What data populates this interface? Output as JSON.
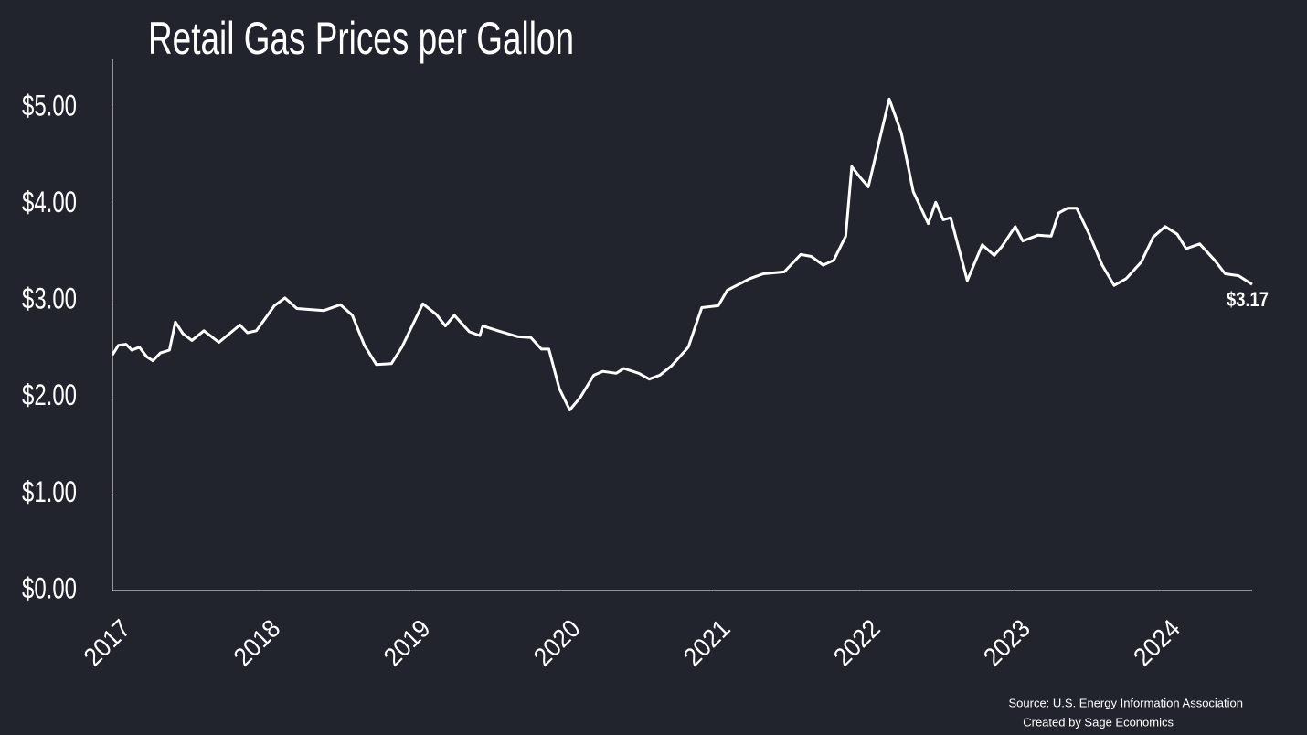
{
  "chart_data": {
    "type": "line",
    "title": "Retail Gas Prices per Gallon",
    "x": [
      2017.0,
      2017.04,
      2017.09,
      2017.13,
      2017.18,
      2017.23,
      2017.27,
      2017.32,
      2017.38,
      2017.42,
      2017.47,
      2017.53,
      2017.61,
      2017.71,
      2017.85,
      2017.9,
      2017.96,
      2018.02,
      2018.08,
      2018.15,
      2018.23,
      2018.32,
      2018.41,
      2018.52,
      2018.6,
      2018.68,
      2018.76,
      2018.86,
      2018.93,
      2019.07,
      2019.16,
      2019.22,
      2019.28,
      2019.38,
      2019.45,
      2019.47,
      2019.57,
      2019.7,
      2019.79,
      2019.86,
      2019.91,
      2019.98,
      2020.05,
      2020.12,
      2020.21,
      2020.27,
      2020.36,
      2020.41,
      2020.51,
      2020.58,
      2020.65,
      2020.73,
      2020.84,
      2020.93,
      2021.04,
      2021.1,
      2021.25,
      2021.34,
      2021.48,
      2021.59,
      2021.66,
      2021.74,
      2021.81,
      2021.89,
      2021.93,
      2021.99,
      2022.04,
      2022.12,
      2022.18,
      2022.26,
      2022.34,
      2022.44,
      2022.49,
      2022.54,
      2022.59,
      2022.7,
      2022.8,
      2022.88,
      2022.93,
      2023.02,
      2023.07,
      2023.17,
      2023.26,
      2023.31,
      2023.37,
      2023.43,
      2023.51,
      2023.6,
      2023.68,
      2023.76,
      2023.86,
      2023.94,
      2024.02,
      2024.1,
      2024.16,
      2024.25,
      2024.35,
      2024.42,
      2024.51,
      2024.6
    ],
    "series": [
      {
        "color": "#ffffff",
        "values": [
          2.44,
          2.54,
          2.55,
          2.49,
          2.52,
          2.42,
          2.38,
          2.46,
          2.49,
          2.78,
          2.66,
          2.59,
          2.69,
          2.57,
          2.75,
          2.67,
          2.69,
          2.82,
          2.95,
          3.03,
          2.92,
          2.91,
          2.9,
          2.96,
          2.85,
          2.54,
          2.34,
          2.35,
          2.52,
          2.97,
          2.86,
          2.74,
          2.85,
          2.68,
          2.64,
          2.74,
          2.69,
          2.63,
          2.62,
          2.5,
          2.5,
          2.09,
          1.87,
          2.0,
          2.23,
          2.27,
          2.25,
          2.3,
          2.25,
          2.19,
          2.23,
          2.33,
          2.52,
          2.93,
          2.95,
          3.11,
          3.23,
          3.28,
          3.3,
          3.48,
          3.46,
          3.37,
          3.42,
          3.67,
          4.39,
          4.27,
          4.18,
          4.7,
          5.09,
          4.74,
          4.13,
          3.8,
          4.02,
          3.84,
          3.86,
          3.21,
          3.58,
          3.47,
          3.56,
          3.77,
          3.62,
          3.68,
          3.67,
          3.91,
          3.96,
          3.96,
          3.7,
          3.37,
          3.16,
          3.23,
          3.4,
          3.66,
          3.77,
          3.69,
          3.54,
          3.59,
          3.42,
          3.28,
          3.26,
          3.17
        ]
      }
    ],
    "xlim": [
      2017,
      2024.6
    ],
    "xticks": [
      2017,
      2018,
      2019,
      2020,
      2021,
      2022,
      2023,
      2024
    ],
    "ylim": [
      0,
      5.5
    ],
    "yticks": [
      {
        "value": 0,
        "label": "$0.00"
      },
      {
        "value": 1,
        "label": "$1.00"
      },
      {
        "value": 2,
        "label": "$2.00"
      },
      {
        "value": 3,
        "label": "$3.00"
      },
      {
        "value": 4,
        "label": "$4.00"
      },
      {
        "value": 5,
        "label": "$5.00"
      }
    ],
    "annotations": [
      {
        "x": 2024.6,
        "y": 3.17,
        "label": "$3.17"
      }
    ],
    "notes": [
      "Source: U.S. Energy Information Association",
      "Created by Sage Economics"
    ]
  }
}
